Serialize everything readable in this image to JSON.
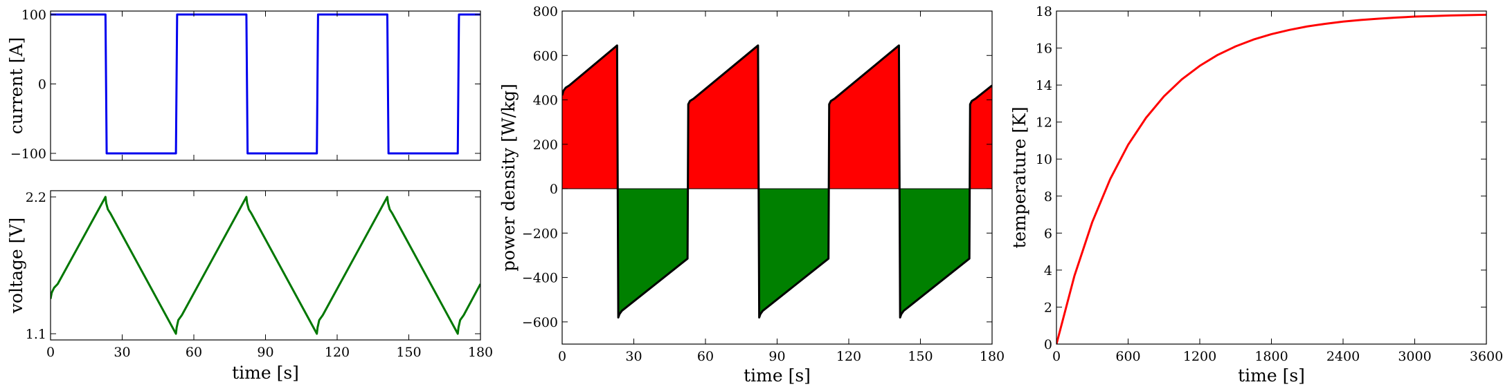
{
  "chart_data": [
    {
      "id": "current",
      "type": "line",
      "xlabel": "",
      "ylabel": "current [A]",
      "xlim": [
        0,
        180
      ],
      "ylim": [
        -110,
        105
      ],
      "xticks": [
        0,
        30,
        60,
        90,
        120,
        150,
        180
      ],
      "xtick_labels": [],
      "yticks": [
        100,
        0,
        -100
      ],
      "ytick_labels": [
        "100",
        "0",
        "−100"
      ],
      "color": "#0000ee",
      "series": [
        {
          "x": [
            0,
            23,
            23.5,
            52.5,
            53,
            82,
            82.5,
            111.5,
            112,
            141,
            141.5,
            170.5,
            171,
            180
          ],
          "y": [
            100,
            100,
            -100,
            -100,
            100,
            100,
            -100,
            -100,
            100,
            100,
            -100,
            -100,
            100,
            100
          ]
        }
      ]
    },
    {
      "id": "voltage",
      "type": "line",
      "xlabel": "time [s]",
      "ylabel": "voltage [V]",
      "xlim": [
        0,
        180
      ],
      "ylim": [
        1.05,
        2.25
      ],
      "xticks": [
        0,
        30,
        60,
        90,
        120,
        150,
        180
      ],
      "xtick_labels": [
        "0",
        "30",
        "60",
        "90",
        "120",
        "150",
        "180"
      ],
      "yticks": [
        2.2,
        1.1
      ],
      "ytick_labels": [
        "2.2",
        "1.1"
      ],
      "color": "#007700",
      "series": [
        {
          "x": [
            0,
            0.5,
            1.5,
            3,
            23,
            23.3,
            24,
            25,
            52.5,
            52.8,
            53.5,
            55,
            82,
            82.3,
            83,
            84,
            111.5,
            111.8,
            112.5,
            114,
            141,
            141.3,
            142,
            143,
            170.5,
            170.8,
            171.5,
            173,
            180
          ],
          "y": [
            1.38,
            1.43,
            1.47,
            1.5,
            2.2,
            2.15,
            2.1,
            2.07,
            1.1,
            1.15,
            1.21,
            1.25,
            2.2,
            2.15,
            2.1,
            2.07,
            1.1,
            1.15,
            1.21,
            1.25,
            2.2,
            2.15,
            2.1,
            2.07,
            1.1,
            1.15,
            1.21,
            1.25,
            1.5
          ]
        }
      ]
    },
    {
      "id": "power",
      "type": "area",
      "xlabel": "time [s]",
      "ylabel": "power density [W/kg]",
      "xlim": [
        0,
        180
      ],
      "ylim": [
        -700,
        800
      ],
      "xticks": [
        0,
        30,
        60,
        90,
        120,
        150,
        180
      ],
      "xtick_labels": [
        "0",
        "30",
        "60",
        "90",
        "120",
        "150",
        "180"
      ],
      "yticks": [
        800,
        600,
        400,
        200,
        0,
        -200,
        -400,
        -600
      ],
      "ytick_labels": [
        "800",
        "600",
        "400",
        "200",
        "0",
        "−200",
        "−400",
        "−600"
      ],
      "positive_color": "#ff0000",
      "negative_color": "#008000",
      "line_color": "#000000",
      "series": [
        {
          "x": [
            0,
            0.5,
            1.5,
            3,
            23,
            23.5,
            24,
            25,
            52.5,
            52.8,
            53.5,
            55,
            82,
            82.5,
            83,
            84,
            111.5,
            111.8,
            112.5,
            114,
            141,
            141.5,
            142,
            143,
            170.5,
            170.8,
            171.5,
            173,
            180
          ],
          "y": [
            420,
            440,
            455,
            465,
            645,
            -580,
            -565,
            -550,
            -315,
            380,
            395,
            405,
            645,
            -580,
            -565,
            -550,
            -315,
            380,
            395,
            405,
            645,
            -580,
            -565,
            -550,
            -315,
            380,
            395,
            405,
            465
          ]
        }
      ]
    },
    {
      "id": "temperature",
      "type": "line",
      "xlabel": "time [s]",
      "ylabel": "temperature [K]",
      "xlim": [
        0,
        3600
      ],
      "ylim": [
        0,
        18
      ],
      "xticks": [
        0,
        600,
        1200,
        1800,
        2400,
        3000,
        3600
      ],
      "xtick_labels": [
        "0",
        "600",
        "1200",
        "1800",
        "2400",
        "3000",
        "3600"
      ],
      "yticks": [
        0,
        2,
        4,
        6,
        8,
        10,
        12,
        14,
        16,
        18
      ],
      "ytick_labels": [
        "0",
        "2",
        "4",
        "6",
        "8",
        "10",
        "12",
        "14",
        "16",
        "18"
      ],
      "color": "#ff0000",
      "series": [
        {
          "x": [
            0,
            150,
            300,
            450,
            600,
            750,
            900,
            1050,
            1200,
            1350,
            1500,
            1650,
            1800,
            1950,
            2100,
            2250,
            2400,
            2550,
            2700,
            2850,
            3000,
            3150,
            3300,
            3450,
            3600
          ],
          "y": [
            0.0,
            3.68,
            6.6,
            8.92,
            10.77,
            12.23,
            13.39,
            14.31,
            15.04,
            15.63,
            16.09,
            16.46,
            16.75,
            16.98,
            17.17,
            17.31,
            17.43,
            17.52,
            17.59,
            17.65,
            17.7,
            17.73,
            17.76,
            17.78,
            17.8
          ]
        }
      ]
    }
  ]
}
